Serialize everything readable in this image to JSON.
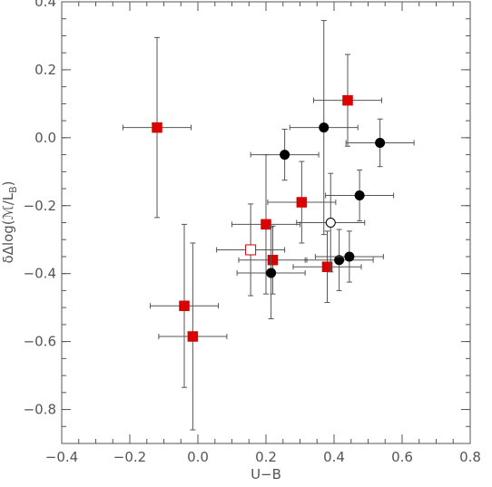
{
  "chart_data": {
    "type": "scatter",
    "xlabel": "U−B",
    "ylabel": "δΔlog(ℳ/L",
    "ylabel_sub": "B",
    "ylabel_close": ")",
    "xlim": [
      -0.4,
      0.8
    ],
    "ylim": [
      -0.9,
      0.4
    ],
    "x_ticks": [
      -0.4,
      -0.2,
      0.0,
      0.2,
      0.4,
      0.6,
      0.8
    ],
    "x_tick_labels": [
      "−0.4",
      "−0.2",
      "0.0",
      "0.2",
      "0.4",
      "0.6",
      "0.8"
    ],
    "y_ticks": [
      -0.8,
      -0.6,
      -0.4,
      -0.2,
      0.0,
      0.2,
      0.4
    ],
    "y_tick_labels": [
      "−0.8",
      "−0.6",
      "−0.4",
      "−0.2",
      "0.0",
      "0.2",
      "0.4"
    ],
    "grid": false,
    "colors": {
      "axis": "#555555",
      "error_bar": "#555555",
      "square_fill": "#dd0000",
      "square_edge": "#cc0000",
      "circle_fill": "#000000"
    },
    "series": [
      {
        "marker": "filled-square",
        "points": [
          {
            "x": -0.12,
            "y": 0.03,
            "xerr": [
              0.1,
              0.1
            ],
            "yerr": [
              0.265,
              0.265
            ]
          },
          {
            "x": 0.44,
            "y": 0.11,
            "xerr": [
              0.1,
              0.1
            ],
            "yerr": [
              0.135,
              0.135
            ]
          },
          {
            "x": 0.305,
            "y": -0.19,
            "xerr": [
              0.1,
              0.1
            ],
            "yerr": [
              0.12,
              0.12
            ]
          },
          {
            "x": 0.2,
            "y": -0.255,
            "xerr": [
              0.1,
              0.1
            ],
            "yerr": [
              0.205,
              0.205
            ]
          },
          {
            "x": 0.22,
            "y": -0.36,
            "xerr": [
              0.1,
              0.1
            ],
            "yerr": [
              0.1,
              0.1
            ]
          },
          {
            "x": 0.38,
            "y": -0.38,
            "xerr": [
              0.1,
              0.1
            ],
            "yerr": [
              0.105,
              0.105
            ]
          },
          {
            "x": -0.04,
            "y": -0.495,
            "xerr": [
              0.1,
              0.1
            ],
            "yerr": [
              0.24,
              0.24
            ]
          },
          {
            "x": -0.015,
            "y": -0.585,
            "xerr": [
              0.1,
              0.1
            ],
            "yerr": [
              0.275,
              0.275
            ]
          }
        ]
      },
      {
        "marker": "open-square",
        "points": [
          {
            "x": 0.155,
            "y": -0.33,
            "xerr": [
              0.1,
              0.1
            ],
            "yerr": [
              0.135,
              0.135
            ]
          }
        ]
      },
      {
        "marker": "filled-circle",
        "points": [
          {
            "x": 0.37,
            "y": 0.03,
            "xerr": [
              0.1,
              0.1
            ],
            "yerr": [
              0.315,
              0.315
            ]
          },
          {
            "x": 0.535,
            "y": -0.015,
            "xerr": [
              0.1,
              0.1
            ],
            "yerr": [
              0.07,
              0.07
            ]
          },
          {
            "x": 0.255,
            "y": -0.05,
            "xerr": [
              0.1,
              0.1
            ],
            "yerr": [
              0.075,
              0.075
            ]
          },
          {
            "x": 0.475,
            "y": -0.17,
            "xerr": [
              0.1,
              0.1
            ],
            "yerr": [
              0.075,
              0.075
            ]
          },
          {
            "x": 0.415,
            "y": -0.36,
            "xerr": [
              0.1,
              0.1
            ],
            "yerr": [
              0.09,
              0.09
            ]
          },
          {
            "x": 0.445,
            "y": -0.35,
            "xerr": [
              0.1,
              0.1
            ],
            "yerr": [
              0.075,
              0.075
            ]
          },
          {
            "x": 0.215,
            "y": -0.398,
            "xerr": [
              0.1,
              0.1
            ],
            "yerr": [
              0.135,
              0.135
            ]
          }
        ]
      },
      {
        "marker": "open-circle",
        "points": [
          {
            "x": 0.39,
            "y": -0.25,
            "xerr": [
              0.1,
              0.1
            ],
            "yerr": [
              0.145,
              0.145
            ]
          }
        ]
      }
    ]
  }
}
